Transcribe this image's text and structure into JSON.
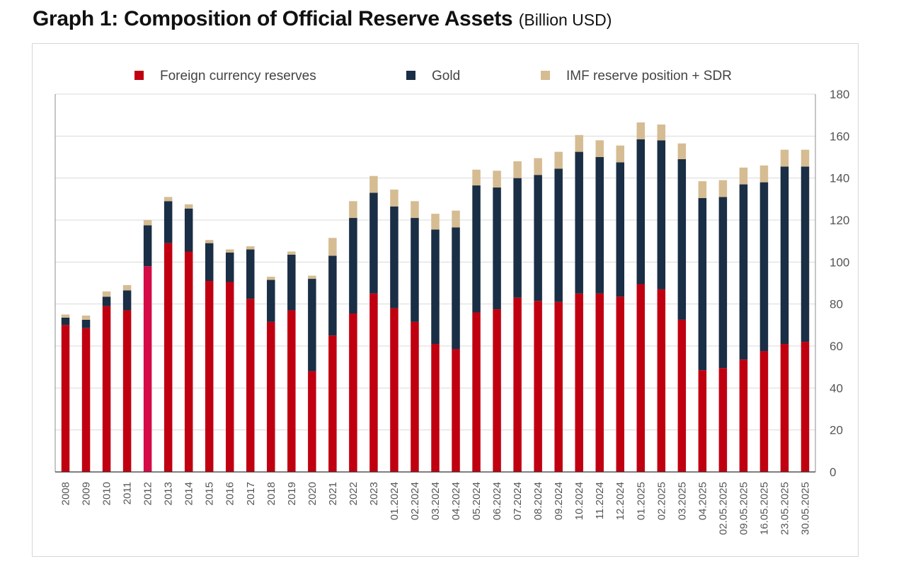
{
  "title": "Graph 1: Composition of Official Reserve Assets",
  "unit": "(Billion USD)",
  "chart_data": {
    "type": "bar",
    "stacked": true,
    "title": "Graph 1: Composition of Official Reserve Assets",
    "unit": "(Billion USD)",
    "xlabel": "",
    "ylabel": "Billion USD",
    "ylim": [
      0,
      180
    ],
    "yticks": [
      0,
      20,
      40,
      60,
      80,
      100,
      120,
      140,
      160,
      180
    ],
    "y_axis_side": "right",
    "legend_position": "top",
    "grid": true,
    "categories": [
      "2008",
      "2009",
      "2010",
      "2011",
      "2012",
      "2013",
      "2014",
      "2015",
      "2016",
      "2017",
      "2018",
      "2019",
      "2020",
      "2021",
      "2022",
      "2023",
      "01.2024",
      "02.2024",
      "03.2024",
      "04.2024",
      "05.2024",
      "06.2024",
      "07.2024",
      "08.2024",
      "09.2024",
      "10.2024",
      "11.2024",
      "12.2024",
      "01.2025",
      "02.2025",
      "03.2025",
      "04.2025",
      "02.05.2025",
      "09.05.2025",
      "16.05.2025",
      "23.05.2025",
      "30.05.2025"
    ],
    "series": [
      {
        "name": "Foreign currency reserves",
        "color": "#c00010",
        "values": [
          70,
          68.5,
          79,
          77,
          98,
          109,
          105,
          91,
          90.5,
          82.5,
          71.5,
          77,
          48,
          65,
          75.5,
          85,
          78,
          71.5,
          61,
          58.5,
          76,
          77.5,
          83,
          81.5,
          81,
          85,
          85,
          83.5,
          89.5,
          87,
          72.5,
          48.5,
          49.5,
          53.5,
          57.5,
          61,
          62
        ]
      },
      {
        "name": "Gold",
        "color": "#1a2e45",
        "values": [
          3.5,
          4,
          4.5,
          9.5,
          19.5,
          20,
          20.5,
          18,
          14,
          23.5,
          20,
          26.5,
          44,
          38,
          45.5,
          48,
          48.5,
          49.5,
          54.5,
          58,
          60.5,
          58,
          57,
          60,
          63.5,
          67.5,
          65,
          64,
          69,
          71,
          76.5,
          82,
          81.5,
          83.5,
          80.5,
          84.5,
          83.5
        ]
      },
      {
        "name": "IMF reserve position + SDR",
        "color": "#d5bc92",
        "values": [
          1.5,
          2,
          2.5,
          2.5,
          2.5,
          2,
          2,
          1.5,
          1.5,
          1.5,
          1.5,
          1.5,
          1.5,
          8.5,
          8,
          8,
          8,
          8,
          7.5,
          8,
          7.5,
          8,
          8,
          8,
          8,
          8,
          8,
          8,
          8,
          7.5,
          7.5,
          8,
          8,
          8,
          8,
          8,
          8
        ]
      }
    ],
    "highlight_color": "#d40b46"
  }
}
